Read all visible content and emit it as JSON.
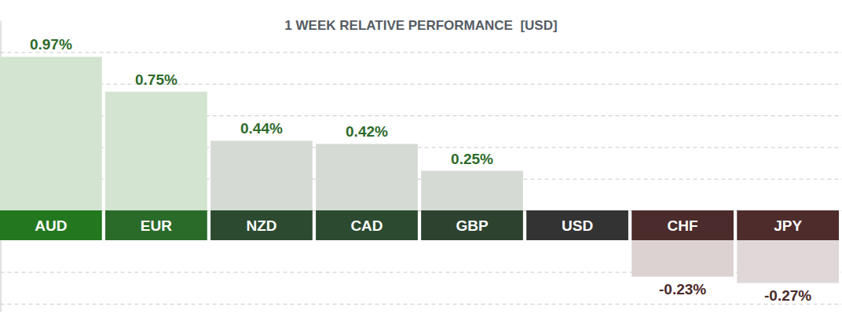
{
  "chart_data": {
    "type": "bar",
    "title": "1 WEEK RELATIVE PERFORMANCE  [USD]",
    "categories": [
      "AUD",
      "EUR",
      "NZD",
      "CAD",
      "GBP",
      "USD",
      "CHF",
      "JPY"
    ],
    "values": [
      0.97,
      0.75,
      0.44,
      0.42,
      0.25,
      0,
      -0.23,
      -0.27
    ],
    "value_labels": [
      "0.97%",
      "0.75%",
      "0.44%",
      "0.42%",
      "0.25%",
      null,
      "-0.23%",
      "-0.27%"
    ],
    "colors": [
      "#d3e4d1",
      "#d3e4d1",
      "#d5dbd4",
      "#d5dbd4",
      "#d5dbd4",
      "#d5dbd4",
      "#dcd2d2",
      "#e0d8d8"
    ],
    "ylim": [
      -0.45,
      1.2
    ],
    "yticks": [
      -0.4,
      -0.2,
      0,
      0.2,
      0.4,
      0.6,
      0.8,
      1.0
    ],
    "grid": true,
    "data_labels": true,
    "tick_labels": false
  }
}
